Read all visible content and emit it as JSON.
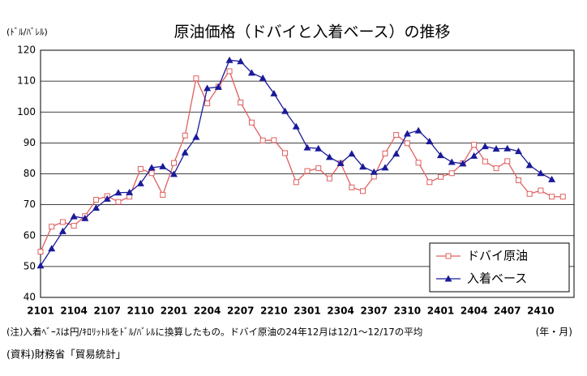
{
  "chart_data": {
    "type": "line",
    "title": "原油価格（ドバイと入着ベース）の推移",
    "y_unit": "(ﾄﾞﾙ/ﾊﾞﾚﾙ)",
    "x_unit": "(年・月)",
    "note": "(注)入着ﾍﾞｰｽは円/ｷﾛﾘｯﾄﾙをﾄﾞﾙ/ﾊﾞﾚﾙに換算したもの。ドバイ原油の24年12月は12/1～12/17の平均",
    "source": "(資料)財務省「貿易統計」",
    "categories": [
      "2101",
      null,
      null,
      "2104",
      null,
      null,
      "2107",
      null,
      null,
      "2110",
      null,
      null,
      "2201",
      null,
      null,
      "2204",
      null,
      null,
      "2207",
      null,
      null,
      "2210",
      null,
      null,
      "2301",
      null,
      null,
      "2304",
      null,
      null,
      "2307",
      null,
      null,
      "2310",
      null,
      null,
      "2401",
      null,
      null,
      "2404",
      null,
      null,
      "2407",
      null,
      null,
      "2410",
      null,
      null
    ],
    "series": [
      {
        "name": "ドバイ原油",
        "color": "#e06060",
        "marker": "square",
        "values": [
          54.8,
          62.9,
          64.4,
          63.2,
          66.3,
          71.6,
          72.8,
          70.9,
          72.6,
          81.6,
          80.2,
          73.2,
          83.5,
          92.4,
          110.9,
          102.8,
          108.2,
          113.2,
          103.1,
          96.6,
          90.8,
          90.9,
          86.7,
          77.3,
          80.9,
          81.8,
          78.5,
          83.5,
          75.6,
          74.4,
          79.1,
          86.6,
          92.6,
          89.9,
          83.6,
          77.3,
          79.0,
          80.2,
          83.4,
          89.4,
          84.0,
          81.8,
          84.1,
          77.9,
          73.5,
          74.6,
          72.6,
          72.6
        ]
      },
      {
        "name": "入着ベース",
        "color": "#1a1a99",
        "marker": "triangle",
        "values": [
          50.3,
          55.8,
          61.4,
          66.2,
          65.6,
          69.0,
          71.9,
          73.9,
          74.0,
          76.9,
          82.0,
          82.4,
          79.9,
          86.9,
          91.9,
          107.7,
          108.1,
          116.8,
          116.4,
          112.7,
          111.0,
          106.0,
          100.3,
          95.3,
          88.5,
          88.2,
          85.4,
          83.4,
          86.5,
          82.3,
          80.6,
          82.0,
          86.5,
          93.0,
          94.0,
          90.5,
          86.0,
          83.8,
          83.3,
          85.8,
          88.9,
          88.1,
          88.2,
          87.3,
          82.8,
          80.2,
          78.2,
          null
        ]
      }
    ],
    "ylim": [
      40,
      120
    ],
    "yticks": [
      40,
      50,
      60,
      70,
      80,
      90,
      100,
      110,
      120
    ],
    "grid": true,
    "legend": "lower right"
  }
}
